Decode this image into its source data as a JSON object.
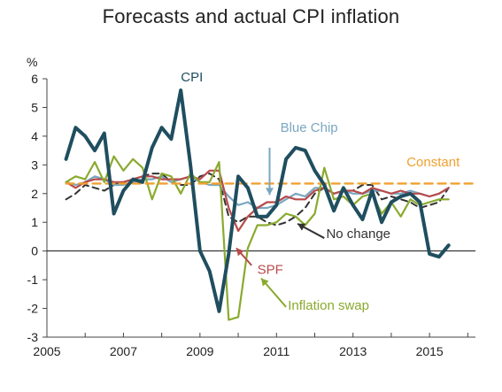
{
  "chart_data": {
    "type": "line",
    "title": "Forecasts and actual CPI inflation",
    "ylabel": "%",
    "xlabel": "",
    "xlim": [
      2005,
      2016.2
    ],
    "ylim": [
      -3,
      6
    ],
    "x_ticks": [
      2005,
      2007,
      2009,
      2011,
      2013,
      2015
    ],
    "y_ticks": [
      -3,
      -2,
      -1,
      0,
      1,
      2,
      3,
      4,
      5,
      6
    ],
    "grid": false,
    "zero_line": true,
    "colors": {
      "CPI": "#1f4e5f",
      "Blue Chip": "#7aa7c0",
      "SPF": "#b84a4a",
      "Inflation swap": "#8aaa2e",
      "No change": "#333333",
      "Constant": "#f0a030"
    },
    "series": [
      {
        "name": "CPI",
        "style": "solid",
        "x": [
          2005.5,
          2005.75,
          2006.0,
          2006.25,
          2006.5,
          2006.75,
          2007.0,
          2007.25,
          2007.5,
          2007.75,
          2008.0,
          2008.25,
          2008.5,
          2008.75,
          2009.0,
          2009.25,
          2009.5,
          2009.75,
          2010.0,
          2010.25,
          2010.5,
          2010.75,
          2011.0,
          2011.25,
          2011.5,
          2011.75,
          2012.0,
          2012.25,
          2012.5,
          2012.75,
          2013.0,
          2013.25,
          2013.5,
          2013.75,
          2014.0,
          2014.25,
          2014.5,
          2014.75,
          2015.0,
          2015.25,
          2015.5
        ],
        "values": [
          3.2,
          4.3,
          4.0,
          3.5,
          4.1,
          1.3,
          2.1,
          2.5,
          2.4,
          3.6,
          4.3,
          3.9,
          5.6,
          3.0,
          0.0,
          -0.7,
          -2.1,
          -0.1,
          2.6,
          2.2,
          1.2,
          1.2,
          1.6,
          3.2,
          3.6,
          3.5,
          2.8,
          2.3,
          1.4,
          2.2,
          1.6,
          1.1,
          2.1,
          1.0,
          1.7,
          1.9,
          2.0,
          1.7,
          -0.1,
          -0.2,
          0.2
        ]
      },
      {
        "name": "Blue Chip",
        "style": "solid",
        "x": [
          2005.5,
          2005.75,
          2006.0,
          2006.25,
          2006.5,
          2006.75,
          2007.0,
          2007.25,
          2007.5,
          2007.75,
          2008.0,
          2008.25,
          2008.5,
          2008.75,
          2009.0,
          2009.25,
          2009.5,
          2009.75,
          2010.0,
          2010.25,
          2010.5,
          2010.75,
          2011.0,
          2011.25,
          2011.5,
          2011.75,
          2012.0,
          2012.25,
          2012.5,
          2012.75,
          2013.0,
          2013.25,
          2013.5,
          2013.75,
          2014.0,
          2014.25,
          2014.5,
          2014.75,
          2015.0,
          2015.25,
          2015.5
        ],
        "values": [
          2.4,
          2.3,
          2.4,
          2.6,
          2.5,
          2.3,
          2.3,
          2.4,
          2.5,
          2.5,
          2.6,
          2.4,
          2.5,
          2.6,
          2.4,
          2.3,
          2.3,
          1.9,
          1.6,
          1.7,
          1.5,
          1.5,
          1.6,
          1.8,
          2.0,
          1.9,
          2.2,
          2.2,
          2.0,
          2.1,
          2.0,
          2.0,
          2.1,
          2.1,
          2.0,
          2.0,
          2.1,
          2.0,
          1.9,
          2.0,
          2.2
        ]
      },
      {
        "name": "SPF",
        "style": "solid",
        "x": [
          2005.5,
          2005.75,
          2006.0,
          2006.25,
          2006.5,
          2006.75,
          2007.0,
          2007.25,
          2007.5,
          2007.75,
          2008.0,
          2008.25,
          2008.5,
          2008.75,
          2009.0,
          2009.25,
          2009.5,
          2009.75,
          2010.0,
          2010.25,
          2010.5,
          2010.75,
          2011.0,
          2011.25,
          2011.5,
          2011.75,
          2012.0,
          2012.25,
          2012.5,
          2012.75,
          2013.0,
          2013.25,
          2013.5,
          2013.75,
          2014.0,
          2014.25,
          2014.5,
          2014.75,
          2015.0,
          2015.25,
          2015.5
        ],
        "values": [
          2.4,
          2.2,
          2.4,
          2.5,
          2.5,
          2.4,
          2.4,
          2.5,
          2.6,
          2.6,
          2.5,
          2.5,
          2.5,
          2.6,
          2.5,
          2.8,
          2.8,
          1.5,
          0.7,
          1.2,
          1.5,
          1.7,
          1.7,
          1.9,
          1.8,
          1.8,
          2.1,
          2.2,
          2.0,
          2.1,
          2.1,
          2.0,
          2.2,
          2.1,
          2.0,
          2.1,
          2.0,
          2.0,
          1.9,
          2.0,
          2.2
        ]
      },
      {
        "name": "Inflation swap",
        "style": "solid",
        "x": [
          2005.5,
          2005.75,
          2006.0,
          2006.25,
          2006.5,
          2006.75,
          2007.0,
          2007.25,
          2007.5,
          2007.75,
          2008.0,
          2008.25,
          2008.5,
          2008.75,
          2009.0,
          2009.25,
          2009.5,
          2009.75,
          2010.0,
          2010.25,
          2010.5,
          2010.75,
          2011.0,
          2011.25,
          2011.5,
          2011.75,
          2012.0,
          2012.25,
          2012.5,
          2012.75,
          2013.0,
          2013.25,
          2013.5,
          2013.75,
          2014.0,
          2014.25,
          2014.5,
          2014.75,
          2015.0,
          2015.25,
          2015.5
        ],
        "values": [
          2.4,
          2.6,
          2.5,
          3.1,
          2.4,
          3.3,
          2.8,
          3.2,
          2.9,
          1.8,
          2.7,
          2.6,
          2.0,
          2.7,
          2.4,
          2.4,
          3.1,
          -2.4,
          -2.3,
          0.1,
          0.9,
          0.9,
          1.0,
          1.3,
          1.2,
          0.9,
          1.3,
          2.9,
          1.8,
          1.9,
          1.6,
          1.9,
          2.0,
          1.3,
          1.7,
          1.2,
          1.8,
          1.6,
          1.7,
          1.8,
          1.8
        ]
      },
      {
        "name": "No change",
        "style": "dashed",
        "x": [
          2005.5,
          2005.75,
          2006.0,
          2006.25,
          2006.5,
          2006.75,
          2007.0,
          2007.25,
          2007.5,
          2007.75,
          2008.0,
          2008.25,
          2008.5,
          2008.75,
          2009.0,
          2009.25,
          2009.5,
          2009.75,
          2010.0,
          2010.25,
          2010.5,
          2010.75,
          2011.0,
          2011.25,
          2011.5,
          2011.75,
          2012.0,
          2012.25,
          2012.5,
          2012.75,
          2013.0,
          2013.25,
          2013.5,
          2013.75,
          2014.0,
          2014.25,
          2014.5,
          2014.75,
          2015.0,
          2015.25,
          2015.5
        ],
        "values": [
          1.8,
          2.0,
          2.3,
          2.2,
          2.1,
          2.3,
          2.4,
          2.5,
          2.6,
          2.7,
          2.7,
          2.4,
          2.3,
          2.3,
          2.6,
          2.7,
          2.5,
          1.2,
          1.0,
          1.2,
          1.2,
          1.0,
          0.9,
          1.0,
          1.2,
          1.5,
          2.0,
          2.2,
          2.0,
          2.1,
          2.1,
          2.3,
          2.3,
          1.8,
          1.9,
          1.8,
          1.7,
          1.5,
          1.6,
          1.7,
          2.2
        ]
      },
      {
        "name": "Constant",
        "style": "dashed",
        "x": [
          2005.5,
          2016.2
        ],
        "values": [
          2.35,
          2.35
        ]
      }
    ],
    "annotations": [
      {
        "text": "CPI",
        "series": "CPI",
        "x": 2008.5,
        "y": 5.9
      },
      {
        "text": "Blue Chip",
        "series": "Blue Chip",
        "x": 2011.1,
        "y": 4.15
      },
      {
        "text": "Constant",
        "series": "Constant",
        "x": 2014.4,
        "y": 2.95
      },
      {
        "text": "No change",
        "series": "No change",
        "x": 2012.3,
        "y": 0.45
      },
      {
        "text": "SPF",
        "series": "SPF",
        "x": 2010.5,
        "y": -0.8
      },
      {
        "text": "Inflation swap",
        "series": "Inflation swap",
        "x": 2011.3,
        "y": -2.05
      }
    ]
  }
}
